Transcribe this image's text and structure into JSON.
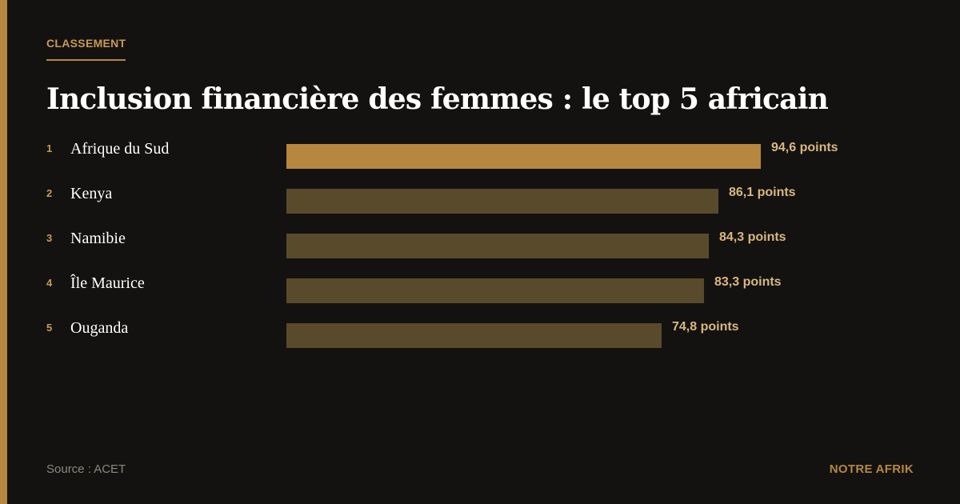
{
  "header": {
    "kicker": "CLASSEMENT",
    "title": "Inclusion financière des femmes : le top 5 africain"
  },
  "chart_data": {
    "type": "bar",
    "orientation": "horizontal",
    "title": "Inclusion financière des femmes : le top 5 africain",
    "ranks": [
      "1",
      "2",
      "3",
      "4",
      "5"
    ],
    "categories": [
      "Afrique du Sud",
      "Kenya",
      "Namibie",
      "Île Maurice",
      "Ouganda"
    ],
    "values": [
      94.6,
      86.1,
      84.3,
      83.3,
      74.8
    ],
    "value_labels": [
      "94,6 points",
      "86,1 points",
      "84,3 points",
      "83,3 points",
      "74,8 points"
    ],
    "unit": "points",
    "colors": {
      "highlight": "#b5873f",
      "default": "#5a4a2c"
    }
  },
  "footer": {
    "source": "Source : ACET",
    "brand": "NOTRE AFRIK"
  },
  "colors": {
    "background": "#131210",
    "accent": "#b5873f",
    "value_text": "#d9b77e"
  }
}
